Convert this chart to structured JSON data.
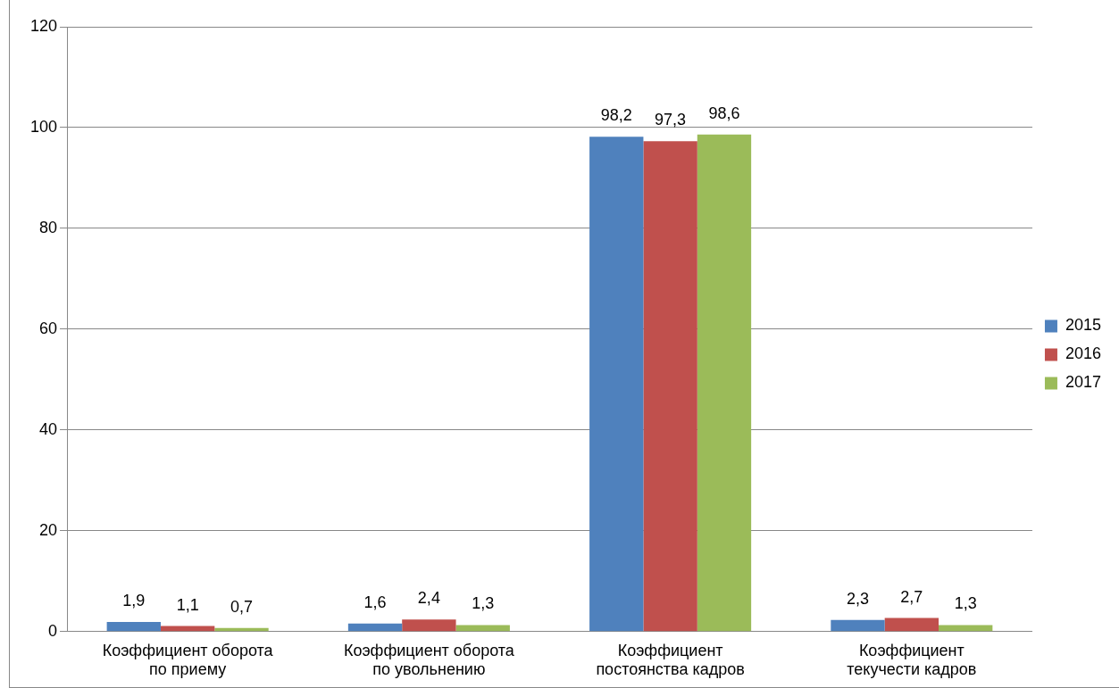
{
  "chart_data": {
    "type": "bar",
    "categories": [
      "Коэффициент оборота по приему",
      "Коэффициент оборота по увольнению",
      "Коэффициент постоянства кадров",
      "Коэффициент текучести кадров"
    ],
    "series": [
      {
        "name": "2015",
        "color": "#4f81bd",
        "values": [
          1.9,
          1.6,
          98.2,
          2.3
        ],
        "value_labels": [
          "1,9",
          "1,6",
          "98,2",
          "2,3"
        ]
      },
      {
        "name": "2016",
        "color": "#c0504d",
        "values": [
          1.1,
          2.4,
          97.3,
          2.7
        ],
        "value_labels": [
          "1,1",
          "2,4",
          "97,3",
          "2,7"
        ]
      },
      {
        "name": "2017",
        "color": "#9bbb59",
        "values": [
          0.7,
          1.3,
          98.6,
          1.3
        ],
        "value_labels": [
          "0,7",
          "1,3",
          "98,6",
          "1,3"
        ]
      }
    ],
    "ylim": [
      0,
      120
    ],
    "yticks": [
      0,
      20,
      40,
      60,
      80,
      100,
      120
    ],
    "grid": "y",
    "legend": "right"
  }
}
